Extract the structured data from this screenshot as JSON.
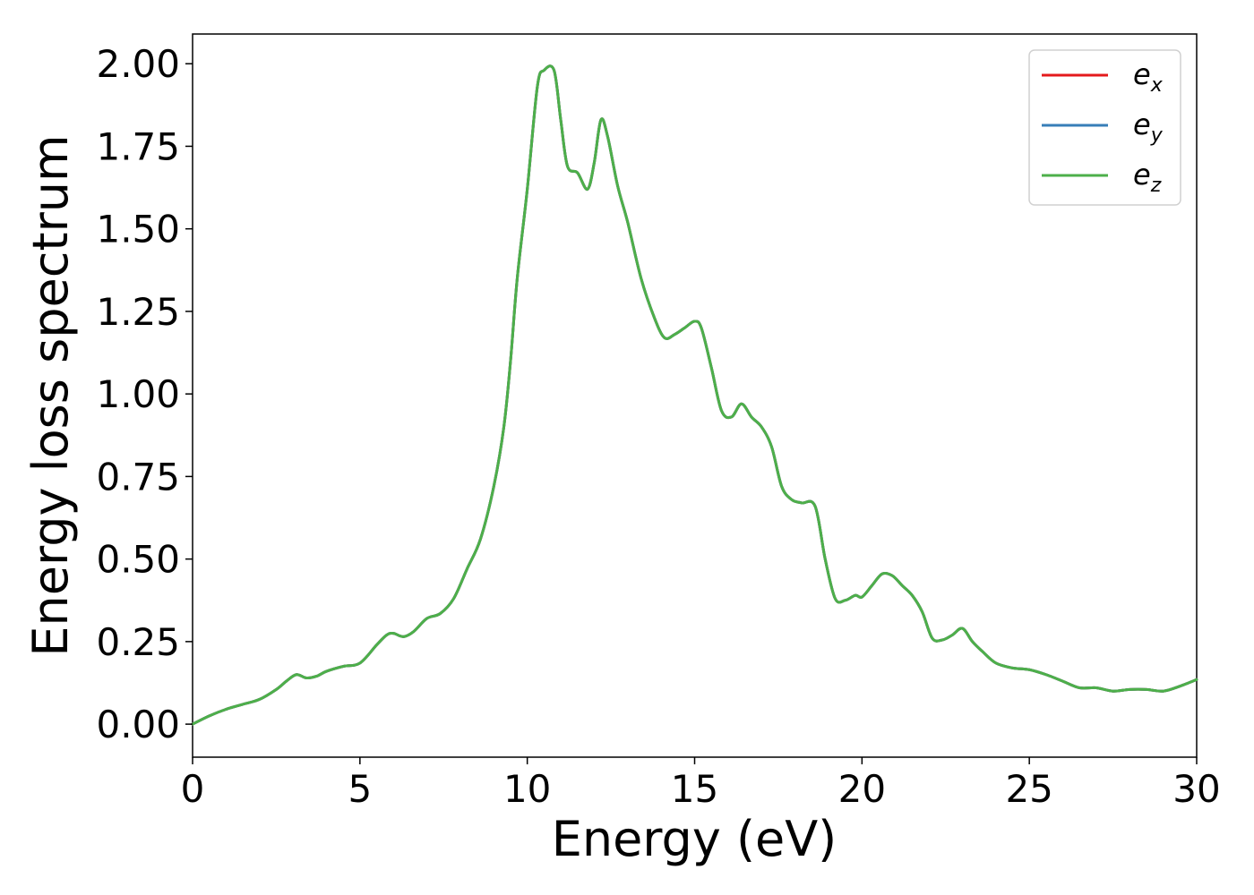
{
  "chart_data": {
    "type": "line",
    "xlabel": "Energy (eV)",
    "ylabel": "Energy loss spectrum",
    "xlim": [
      0,
      30
    ],
    "ylim": [
      -0.1,
      2.09
    ],
    "x_ticks": [
      0,
      5,
      10,
      15,
      20,
      25,
      30
    ],
    "y_ticks": [
      0.0,
      0.25,
      0.5,
      0.75,
      1.0,
      1.25,
      1.5,
      1.75,
      2.0
    ],
    "x_tick_labels": [
      "0",
      "5",
      "10",
      "15",
      "20",
      "25",
      "30"
    ],
    "y_tick_labels": [
      "0.00",
      "0.25",
      "0.50",
      "0.75",
      "1.00",
      "1.25",
      "1.50",
      "1.75",
      "2.00"
    ],
    "grid": false,
    "legend_position": "top-right",
    "series": [
      {
        "name": "e",
        "subscript": "x",
        "color": "#e41a1c",
        "x": [
          0,
          0.5,
          1.0,
          1.5,
          2.0,
          2.5,
          2.8,
          3.1,
          3.4,
          3.7,
          4.0,
          4.5,
          5.0,
          5.5,
          5.8,
          6.0,
          6.3,
          6.6,
          7.0,
          7.4,
          7.8,
          8.2,
          8.6,
          9.0,
          9.3,
          9.5,
          9.7,
          10.0,
          10.3,
          10.5,
          10.8,
          11.0,
          11.2,
          11.5,
          11.8,
          12.0,
          12.2,
          12.4,
          12.7,
          13.0,
          13.4,
          13.8,
          14.1,
          14.4,
          14.7,
          15.0,
          15.2,
          15.5,
          15.8,
          16.1,
          16.4,
          16.7,
          17.0,
          17.3,
          17.6,
          17.9,
          18.2,
          18.6,
          18.9,
          19.2,
          19.5,
          19.8,
          20.0,
          20.3,
          20.6,
          20.9,
          21.2,
          21.5,
          21.8,
          22.1,
          22.4,
          22.7,
          23.0,
          23.3,
          23.6,
          24.0,
          24.5,
          25.0,
          25.5,
          26.0,
          26.5,
          27.0,
          27.5,
          28.0,
          28.5,
          29.0,
          29.5,
          30.0
        ],
        "values": [
          0.0,
          0.025,
          0.045,
          0.06,
          0.075,
          0.105,
          0.13,
          0.15,
          0.14,
          0.145,
          0.16,
          0.175,
          0.185,
          0.24,
          0.27,
          0.275,
          0.265,
          0.28,
          0.32,
          0.335,
          0.38,
          0.47,
          0.56,
          0.72,
          0.9,
          1.1,
          1.35,
          1.62,
          1.93,
          1.98,
          1.98,
          1.83,
          1.69,
          1.67,
          1.62,
          1.7,
          1.83,
          1.78,
          1.63,
          1.52,
          1.35,
          1.23,
          1.17,
          1.18,
          1.2,
          1.22,
          1.2,
          1.08,
          0.95,
          0.93,
          0.97,
          0.93,
          0.9,
          0.84,
          0.72,
          0.68,
          0.67,
          0.66,
          0.5,
          0.38,
          0.375,
          0.39,
          0.385,
          0.42,
          0.455,
          0.45,
          0.42,
          0.39,
          0.34,
          0.26,
          0.255,
          0.27,
          0.29,
          0.25,
          0.22,
          0.185,
          0.17,
          0.165,
          0.15,
          0.13,
          0.11,
          0.11,
          0.1,
          0.105,
          0.105,
          0.1,
          0.115,
          0.135
        ]
      },
      {
        "name": "e",
        "subscript": "y",
        "color": "#377eb8",
        "x": [
          0,
          0.5,
          1.0,
          1.5,
          2.0,
          2.5,
          2.8,
          3.1,
          3.4,
          3.7,
          4.0,
          4.5,
          5.0,
          5.5,
          5.8,
          6.0,
          6.3,
          6.6,
          7.0,
          7.4,
          7.8,
          8.2,
          8.6,
          9.0,
          9.3,
          9.5,
          9.7,
          10.0,
          10.3,
          10.5,
          10.8,
          11.0,
          11.2,
          11.5,
          11.8,
          12.0,
          12.2,
          12.4,
          12.7,
          13.0,
          13.4,
          13.8,
          14.1,
          14.4,
          14.7,
          15.0,
          15.2,
          15.5,
          15.8,
          16.1,
          16.4,
          16.7,
          17.0,
          17.3,
          17.6,
          17.9,
          18.2,
          18.6,
          18.9,
          19.2,
          19.5,
          19.8,
          20.0,
          20.3,
          20.6,
          20.9,
          21.2,
          21.5,
          21.8,
          22.1,
          22.4,
          22.7,
          23.0,
          23.3,
          23.6,
          24.0,
          24.5,
          25.0,
          25.5,
          26.0,
          26.5,
          27.0,
          27.5,
          28.0,
          28.5,
          29.0,
          29.5,
          30.0
        ],
        "values": [
          0.0,
          0.025,
          0.045,
          0.06,
          0.075,
          0.105,
          0.13,
          0.15,
          0.14,
          0.145,
          0.16,
          0.175,
          0.185,
          0.24,
          0.27,
          0.275,
          0.265,
          0.28,
          0.32,
          0.335,
          0.38,
          0.47,
          0.56,
          0.72,
          0.9,
          1.1,
          1.35,
          1.62,
          1.93,
          1.98,
          1.98,
          1.83,
          1.69,
          1.67,
          1.62,
          1.7,
          1.83,
          1.78,
          1.63,
          1.52,
          1.35,
          1.23,
          1.17,
          1.18,
          1.2,
          1.22,
          1.2,
          1.08,
          0.95,
          0.93,
          0.97,
          0.93,
          0.9,
          0.84,
          0.72,
          0.68,
          0.67,
          0.66,
          0.5,
          0.38,
          0.375,
          0.39,
          0.385,
          0.42,
          0.455,
          0.45,
          0.42,
          0.39,
          0.34,
          0.26,
          0.255,
          0.27,
          0.29,
          0.25,
          0.22,
          0.185,
          0.17,
          0.165,
          0.15,
          0.13,
          0.11,
          0.11,
          0.1,
          0.105,
          0.105,
          0.1,
          0.115,
          0.135
        ]
      },
      {
        "name": "e",
        "subscript": "z",
        "color": "#4daf4a",
        "x": [
          0,
          0.5,
          1.0,
          1.5,
          2.0,
          2.5,
          2.8,
          3.1,
          3.4,
          3.7,
          4.0,
          4.5,
          5.0,
          5.5,
          5.8,
          6.0,
          6.3,
          6.6,
          7.0,
          7.4,
          7.8,
          8.2,
          8.6,
          9.0,
          9.3,
          9.5,
          9.7,
          10.0,
          10.3,
          10.5,
          10.8,
          11.0,
          11.2,
          11.5,
          11.8,
          12.0,
          12.2,
          12.4,
          12.7,
          13.0,
          13.4,
          13.8,
          14.1,
          14.4,
          14.7,
          15.0,
          15.2,
          15.5,
          15.8,
          16.1,
          16.4,
          16.7,
          17.0,
          17.3,
          17.6,
          17.9,
          18.2,
          18.6,
          18.9,
          19.2,
          19.5,
          19.8,
          20.0,
          20.3,
          20.6,
          20.9,
          21.2,
          21.5,
          21.8,
          22.1,
          22.4,
          22.7,
          23.0,
          23.3,
          23.6,
          24.0,
          24.5,
          25.0,
          25.5,
          26.0,
          26.5,
          27.0,
          27.5,
          28.0,
          28.5,
          29.0,
          29.5,
          30.0
        ],
        "values": [
          0.0,
          0.025,
          0.045,
          0.06,
          0.075,
          0.105,
          0.13,
          0.15,
          0.14,
          0.145,
          0.16,
          0.175,
          0.185,
          0.24,
          0.27,
          0.275,
          0.265,
          0.28,
          0.32,
          0.335,
          0.38,
          0.47,
          0.56,
          0.72,
          0.9,
          1.1,
          1.35,
          1.62,
          1.93,
          1.98,
          1.98,
          1.83,
          1.69,
          1.67,
          1.62,
          1.7,
          1.83,
          1.78,
          1.63,
          1.52,
          1.35,
          1.23,
          1.17,
          1.18,
          1.2,
          1.22,
          1.2,
          1.08,
          0.95,
          0.93,
          0.97,
          0.93,
          0.9,
          0.84,
          0.72,
          0.68,
          0.67,
          0.66,
          0.5,
          0.38,
          0.375,
          0.39,
          0.385,
          0.42,
          0.455,
          0.45,
          0.42,
          0.39,
          0.34,
          0.26,
          0.255,
          0.27,
          0.29,
          0.25,
          0.22,
          0.185,
          0.17,
          0.165,
          0.15,
          0.13,
          0.11,
          0.11,
          0.1,
          0.105,
          0.105,
          0.1,
          0.115,
          0.135
        ]
      }
    ]
  }
}
